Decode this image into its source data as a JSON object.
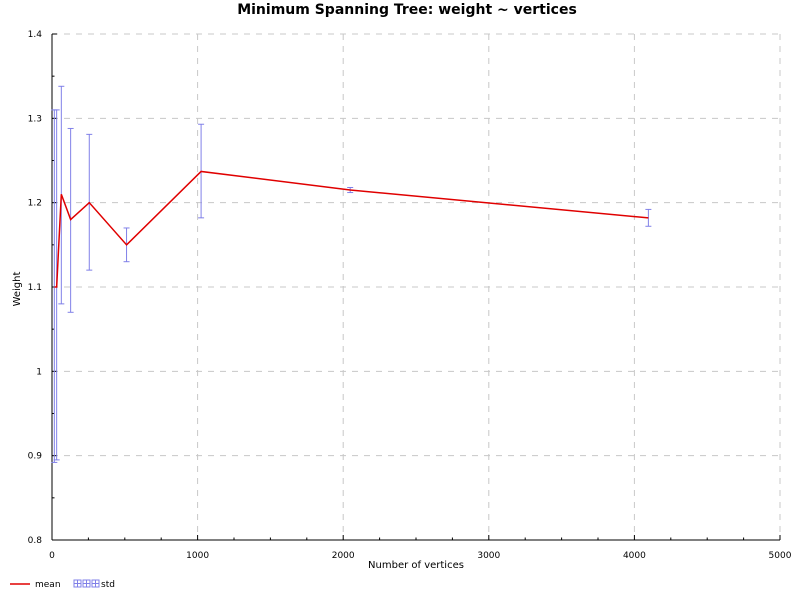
{
  "chart_data": {
    "type": "line",
    "title": "Minimum Spanning Tree: weight ~ vertices",
    "xlabel": "Number of vertices",
    "ylabel": "Weight",
    "xlim": [
      0,
      5000
    ],
    "ylim": [
      0.8,
      1.4
    ],
    "xticks": [
      0,
      1000,
      2000,
      3000,
      4000,
      5000
    ],
    "xtick_labels": [
      "0",
      "1000",
      "2000",
      "3000",
      "4000",
      "5000"
    ],
    "yticks": [
      0.8,
      0.9,
      1.0,
      1.1,
      1.2,
      1.3,
      1.4
    ],
    "ytick_labels": [
      "0.8",
      "0.9",
      "1",
      "1.1",
      "1.2",
      "1.3",
      "1.4"
    ],
    "grid": true,
    "legend_position": "bottom-left",
    "series": [
      {
        "name": "mean",
        "color": "#e00000",
        "x": [
          16,
          32,
          64,
          128,
          256,
          512,
          1024,
          2048,
          4096
        ],
        "y": [
          1.1,
          1.1,
          1.21,
          1.18,
          1.2,
          1.15,
          1.237,
          1.215,
          1.182
        ]
      }
    ],
    "error_bars": {
      "name": "std",
      "color": "#8080e8",
      "x": [
        16,
        32,
        64,
        128,
        256,
        512,
        1024,
        2048,
        4096
      ],
      "low": [
        0.892,
        0.895,
        1.08,
        1.07,
        1.12,
        1.13,
        1.182,
        1.212,
        1.172
      ],
      "high": [
        1.31,
        1.31,
        1.338,
        1.288,
        1.281,
        1.17,
        1.293,
        1.218,
        1.192
      ]
    }
  }
}
